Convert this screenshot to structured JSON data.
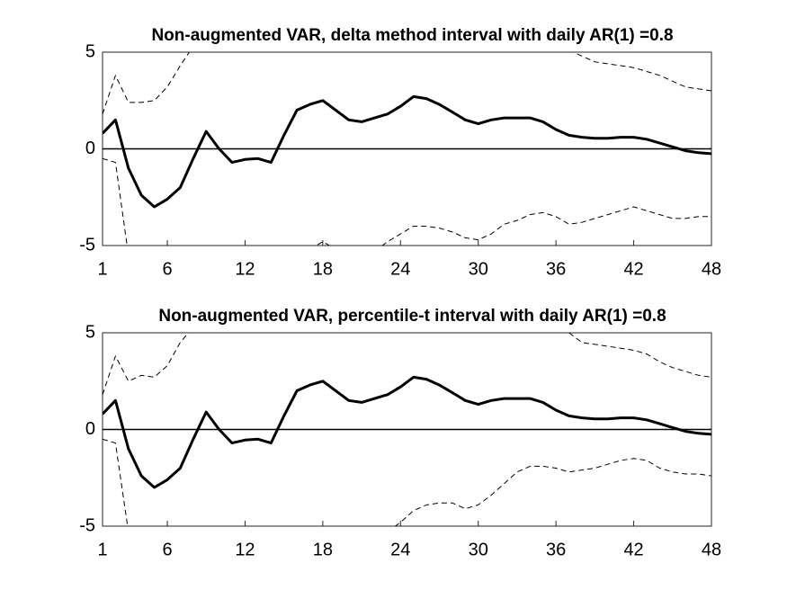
{
  "chart_data": [
    {
      "type": "line",
      "title": "Non-augmented VAR, delta method interval with daily AR(1) =0.8",
      "x": [
        1,
        2,
        3,
        4,
        5,
        6,
        7,
        8,
        9,
        10,
        11,
        12,
        13,
        14,
        15,
        16,
        17,
        18,
        19,
        20,
        21,
        22,
        23,
        24,
        25,
        26,
        27,
        28,
        29,
        30,
        31,
        32,
        33,
        34,
        35,
        36,
        37,
        38,
        39,
        40,
        41,
        42,
        43,
        44,
        45,
        46,
        47,
        48
      ],
      "xlim": [
        1,
        48
      ],
      "xticks": [
        1,
        6,
        12,
        18,
        24,
        30,
        36,
        42,
        48
      ],
      "ylim": [
        -5,
        5
      ],
      "yticks": [
        -5,
        0,
        5
      ],
      "zero_line": true,
      "series": [
        {
          "color": "#000000",
          "style": "solid",
          "width": 3,
          "values": [
            0.8,
            1.5,
            -1.0,
            -2.4,
            -3.0,
            -2.6,
            -2.0,
            -0.5,
            0.9,
            0,
            -0.7,
            -0.55,
            -0.5,
            -0.7,
            0.7,
            2.0,
            2.3,
            2.5,
            2.0,
            1.5,
            1.4,
            1.6,
            1.8,
            2.2,
            2.7,
            2.6,
            2.3,
            1.9,
            1.5,
            1.3,
            1.5,
            1.6,
            1.6,
            1.6,
            1.4,
            1.0,
            0.7,
            0.6,
            0.55,
            0.55,
            0.6,
            0.6,
            0.5,
            0.3,
            0.1,
            -0.1,
            -0.2,
            -0.25
          ]
        },
        {
          "color": "#000000",
          "style": "dashed",
          "width": 1,
          "values": [
            1.8,
            3.8,
            2.4,
            2.4,
            2.5,
            3.2,
            4.3,
            5.3,
            null,
            null,
            null,
            null,
            null,
            null,
            null,
            null,
            null,
            null,
            null,
            null,
            null,
            null,
            null,
            null,
            null,
            null,
            null,
            null,
            null,
            null,
            null,
            null,
            null,
            null,
            null,
            null,
            5.1,
            4.8,
            4.5,
            4.4,
            4.3,
            4.2,
            4.0,
            3.8,
            3.5,
            3.2,
            3.1,
            3.0
          ]
        },
        {
          "color": "#000000",
          "style": "dashed",
          "width": 1,
          "values": [
            -0.5,
            -0.7,
            -5.5,
            null,
            null,
            null,
            null,
            null,
            null,
            null,
            null,
            null,
            null,
            null,
            null,
            null,
            -5.2,
            -4.8,
            -5.2,
            null,
            null,
            -5.3,
            -4.8,
            -4.4,
            -4.0,
            -4.0,
            -4.1,
            -4.3,
            -4.6,
            -4.7,
            -4.4,
            -3.9,
            -3.7,
            -3.4,
            -3.3,
            -3.5,
            -3.9,
            -3.8,
            -3.6,
            -3.4,
            -3.2,
            -3.0,
            -3.2,
            -3.4,
            -3.6,
            -3.6,
            -3.5,
            -3.5
          ]
        }
      ]
    },
    {
      "type": "line",
      "title": "Non-augmented VAR, percentile-t interval with daily AR(1) =0.8",
      "x": [
        1,
        2,
        3,
        4,
        5,
        6,
        7,
        8,
        9,
        10,
        11,
        12,
        13,
        14,
        15,
        16,
        17,
        18,
        19,
        20,
        21,
        22,
        23,
        24,
        25,
        26,
        27,
        28,
        29,
        30,
        31,
        32,
        33,
        34,
        35,
        36,
        37,
        38,
        39,
        40,
        41,
        42,
        43,
        44,
        45,
        46,
        47,
        48
      ],
      "xlim": [
        1,
        48
      ],
      "xticks": [
        1,
        6,
        12,
        18,
        24,
        30,
        36,
        42,
        48
      ],
      "ylim": [
        -5,
        5
      ],
      "yticks": [
        -5,
        0,
        5
      ],
      "zero_line": true,
      "series": [
        {
          "color": "#000000",
          "style": "solid",
          "width": 3,
          "values": [
            0.8,
            1.5,
            -1.0,
            -2.4,
            -3.0,
            -2.6,
            -2.0,
            -0.5,
            0.9,
            0,
            -0.7,
            -0.55,
            -0.5,
            -0.7,
            0.7,
            2.0,
            2.3,
            2.5,
            2.0,
            1.5,
            1.4,
            1.6,
            1.8,
            2.2,
            2.7,
            2.6,
            2.3,
            1.9,
            1.5,
            1.3,
            1.5,
            1.6,
            1.6,
            1.6,
            1.4,
            1.0,
            0.7,
            0.6,
            0.55,
            0.55,
            0.6,
            0.6,
            0.5,
            0.3,
            0.1,
            -0.1,
            -0.2,
            -0.25
          ]
        },
        {
          "color": "#000000",
          "style": "dashed",
          "width": 1,
          "values": [
            1.8,
            3.8,
            2.5,
            2.8,
            2.7,
            3.3,
            4.5,
            5.3,
            null,
            null,
            null,
            null,
            null,
            null,
            null,
            null,
            null,
            null,
            null,
            null,
            null,
            null,
            null,
            null,
            null,
            null,
            null,
            null,
            null,
            null,
            null,
            null,
            null,
            null,
            null,
            null,
            5.0,
            4.5,
            4.4,
            4.3,
            4.2,
            4.1,
            3.9,
            3.5,
            3.2,
            3.0,
            2.8,
            2.7
          ]
        },
        {
          "color": "#000000",
          "style": "dashed",
          "width": 1,
          "values": [
            -0.5,
            -0.7,
            -5.3,
            null,
            null,
            null,
            null,
            null,
            null,
            null,
            null,
            null,
            null,
            null,
            null,
            null,
            null,
            null,
            null,
            null,
            null,
            null,
            -5.3,
            -4.8,
            -4.2,
            -3.9,
            -3.8,
            -3.8,
            -4.1,
            -3.9,
            -3.4,
            -2.8,
            -2.2,
            -1.9,
            -1.9,
            -2.0,
            -2.2,
            -2.1,
            -2.0,
            -1.8,
            -1.6,
            -1.5,
            -1.6,
            -2.0,
            -2.2,
            -2.3,
            -2.3,
            -2.4
          ]
        }
      ]
    }
  ]
}
